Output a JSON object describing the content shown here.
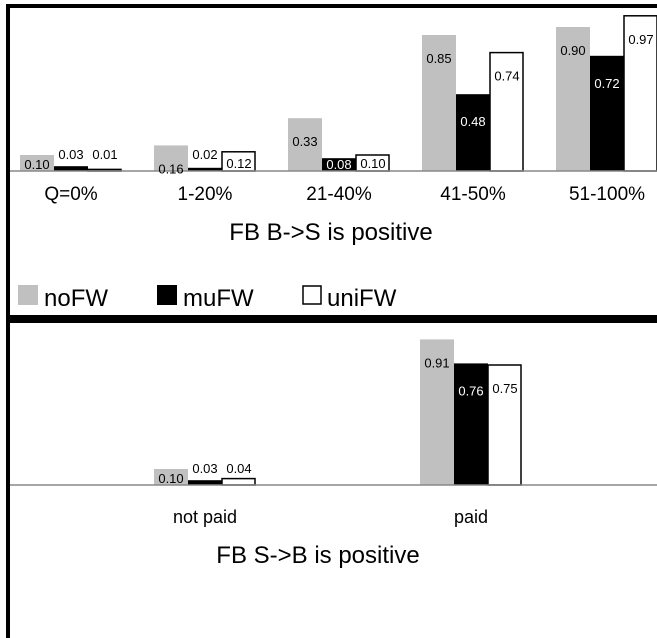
{
  "colors": {
    "noFW": "#c0c0c0",
    "muFW": "#000000",
    "uniFW": "#ffffff",
    "axis": "#888888",
    "frame": "#000000"
  },
  "legend": {
    "items": [
      "noFW",
      "muFW",
      "uniFW"
    ]
  },
  "chart_data": [
    {
      "type": "bar",
      "title": "FB B->S is positive",
      "categories": [
        "Q=0%",
        "1-20%",
        "21-40%",
        "41-50%",
        "51-100%"
      ],
      "series": [
        {
          "name": "noFW",
          "values": [
            0.1,
            0.16,
            0.33,
            0.85,
            0.9
          ]
        },
        {
          "name": "muFW",
          "values": [
            0.03,
            0.02,
            0.08,
            0.48,
            0.72
          ]
        },
        {
          "name": "uniFW",
          "values": [
            0.01,
            0.12,
            0.1,
            0.74,
            0.97
          ]
        }
      ],
      "data_labels": [
        [
          "0.10",
          "0.16",
          "0.33",
          "0.85",
          "0.90"
        ],
        [
          "0.03",
          "0.02",
          "0.08",
          "0.48",
          "0.72"
        ],
        [
          "0.01",
          "0.12",
          "0.10",
          "0.74",
          "0.97"
        ]
      ],
      "ylim": [
        0,
        1
      ],
      "grid": false,
      "legend_position": "bottom-left"
    },
    {
      "type": "bar",
      "title": "FB S->B is positive",
      "categories": [
        "not paid",
        "paid"
      ],
      "series": [
        {
          "name": "noFW",
          "values": [
            0.1,
            0.91
          ]
        },
        {
          "name": "muFW",
          "values": [
            0.03,
            0.76
          ]
        },
        {
          "name": "uniFW",
          "values": [
            0.04,
            0.75
          ]
        }
      ],
      "data_labels": [
        [
          "0.10",
          "0.91"
        ],
        [
          "0.03",
          "0.76"
        ],
        [
          "0.04",
          "0.75"
        ]
      ],
      "ylim": [
        0,
        1
      ],
      "grid": false
    }
  ]
}
